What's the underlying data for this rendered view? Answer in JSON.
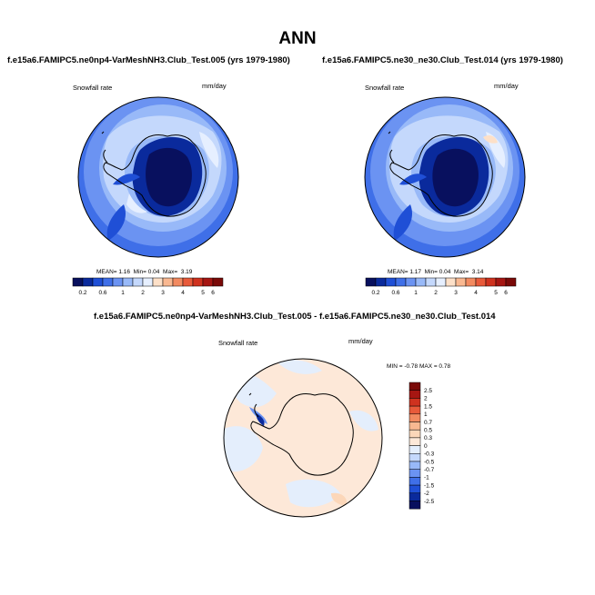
{
  "main_title": "ANN",
  "panels": [
    {
      "title": "f.e15a6.FAMIPC5.ne0np4-VarMeshNH3.Club_Test.005 (yrs 1979-1980)",
      "variable": "Snowfall rate",
      "units": "mm/day",
      "stats": {
        "mean_label": "MEAN=",
        "mean": "1.16",
        "min_label": "Min=",
        "min": "0.04",
        "max_label": "Max=",
        "max": "3.19"
      }
    },
    {
      "title": "f.e15a6.FAMIPC5.ne30_ne30.Club_Test.014 (yrs 1979-1980)",
      "variable": "Snowfall rate",
      "units": "mm/day",
      "stats": {
        "mean_label": "MEAN=",
        "mean": "1.17",
        "min_label": "Min=",
        "min": "0.04",
        "max_label": "Max=",
        "max": "3.14"
      }
    },
    {
      "title": "f.e15a6.FAMIPC5.ne0np4-VarMeshNH3.Club_Test.005 - f.e15a6.FAMIPC5.ne30_ne30.Club_Test.014",
      "variable": "Snowfall rate",
      "units": "mm/day",
      "stats": {
        "minmax": "MIN = -0.78 MAX = 0.78"
      }
    }
  ],
  "colorbar_main": {
    "labels": [
      "0.2",
      "0.6",
      "1",
      "2",
      "3",
      "4",
      "5",
      "6"
    ],
    "colors": [
      "#08105e",
      "#0a2a9c",
      "#1f4fd6",
      "#3f6fe8",
      "#6b93f2",
      "#98b9f8",
      "#c4d8fc",
      "#e6efff",
      "#fde0c8",
      "#f9b891",
      "#f28a60",
      "#e85a3a",
      "#cf321f",
      "#a61612",
      "#7a0a08"
    ]
  },
  "colorbar_diff": {
    "labels": [
      "2.5",
      "2",
      "1.5",
      "1",
      "0.7",
      "0.5",
      "0.3",
      "0",
      "-0.3",
      "-0.5",
      "-0.7",
      "-1",
      "-1.5",
      "-2",
      "-2.5"
    ],
    "colors": [
      "#7a0a08",
      "#a61612",
      "#cf321f",
      "#e85a3a",
      "#f28a60",
      "#f9b891",
      "#fcd7b9",
      "#fde8d8",
      "#e4eefc",
      "#c4d8fc",
      "#98b9f8",
      "#6b93f2",
      "#3f6fe8",
      "#1f4fd6",
      "#0a2a9c",
      "#08105e"
    ]
  }
}
